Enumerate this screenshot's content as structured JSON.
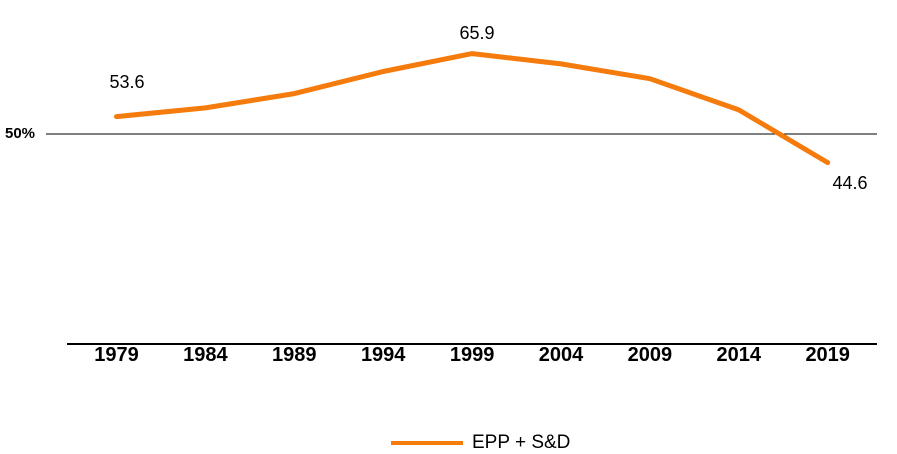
{
  "chart_data": {
    "type": "line",
    "categories": [
      "1979",
      "1984",
      "1989",
      "1994",
      "1999",
      "2004",
      "2009",
      "2014",
      "2019"
    ],
    "series": [
      {
        "name": "EPP + S&D",
        "color": "#F57B0C",
        "values": [
          53.6,
          55.3,
          58.1,
          62.4,
          65.9,
          63.9,
          61.0,
          54.9,
          44.6
        ]
      }
    ],
    "point_labels": [
      {
        "text": "53.6",
        "index": 0
      },
      {
        "text": "65.9",
        "index": 4
      },
      {
        "text": "44.6",
        "index": 8
      }
    ],
    "y_axis": {
      "reference_line_value": 50,
      "reference_line_label": "50%"
    },
    "xlabel": "",
    "ylabel": "",
    "grid": "single-horizontal-reference-line",
    "legend_position": "bottom-center"
  },
  "legend": {
    "label": "EPP + S&D"
  },
  "colors": {
    "series": "#F57B0C",
    "axis": "#000000",
    "text": "#000000",
    "background": "#FFFFFF"
  }
}
